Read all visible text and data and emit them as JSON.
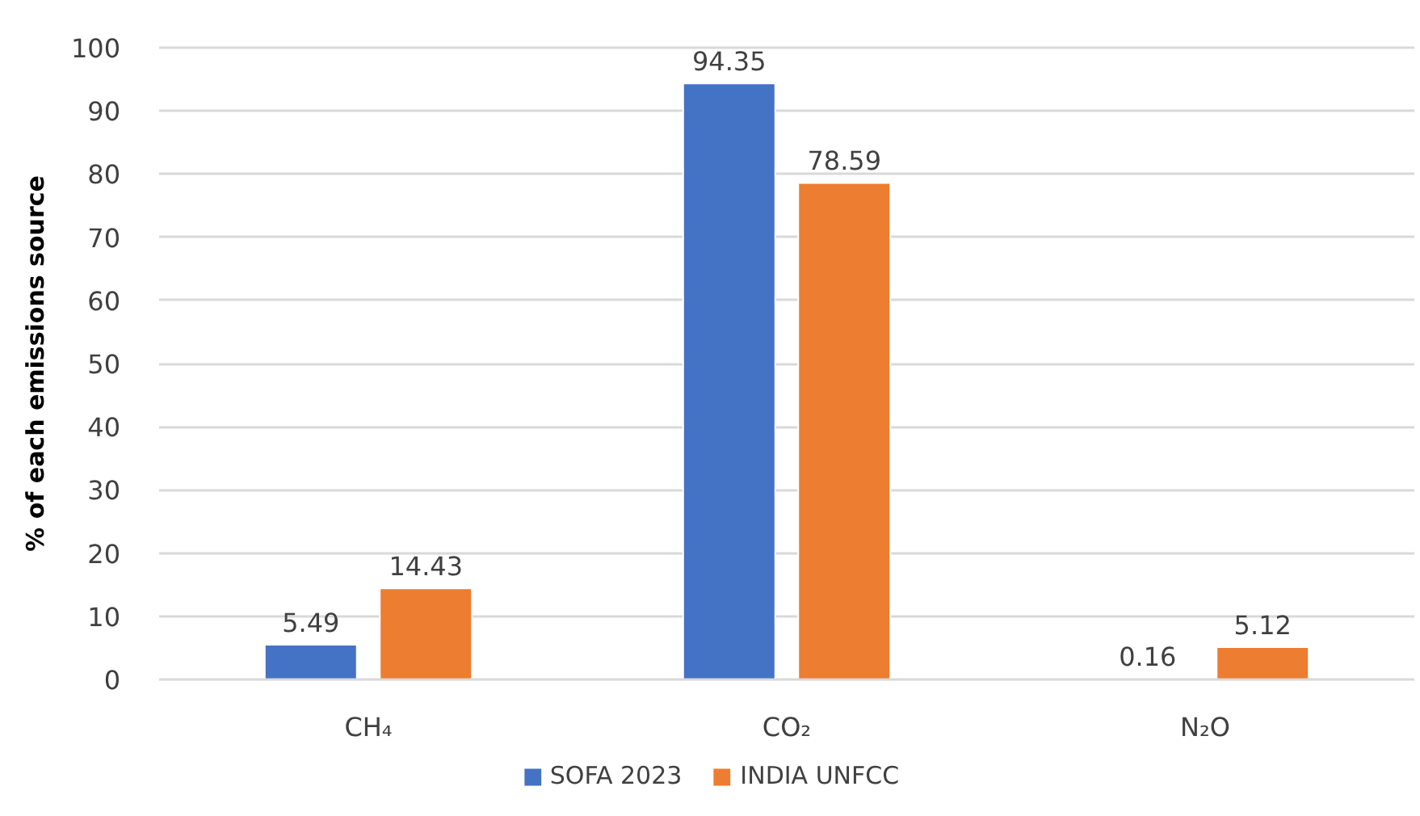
{
  "chart_data": {
    "type": "bar",
    "ylabel": "% of each emissions source",
    "categories": [
      "CH₄",
      "CO₂",
      "N₂O"
    ],
    "series": [
      {
        "name": "SOFA 2023",
        "color": "#4472c4",
        "values": [
          5.49,
          94.35,
          0.16
        ]
      },
      {
        "name": "INDIA UNFCC",
        "color": "#ed7d31",
        "values": [
          14.43,
          78.59,
          5.12
        ]
      }
    ],
    "ylim": [
      0,
      100
    ],
    "yticks": [
      0,
      10,
      20,
      30,
      40,
      50,
      60,
      70,
      80,
      90,
      100
    ],
    "grid": "y",
    "legend": "bottom",
    "data_labels": true
  }
}
